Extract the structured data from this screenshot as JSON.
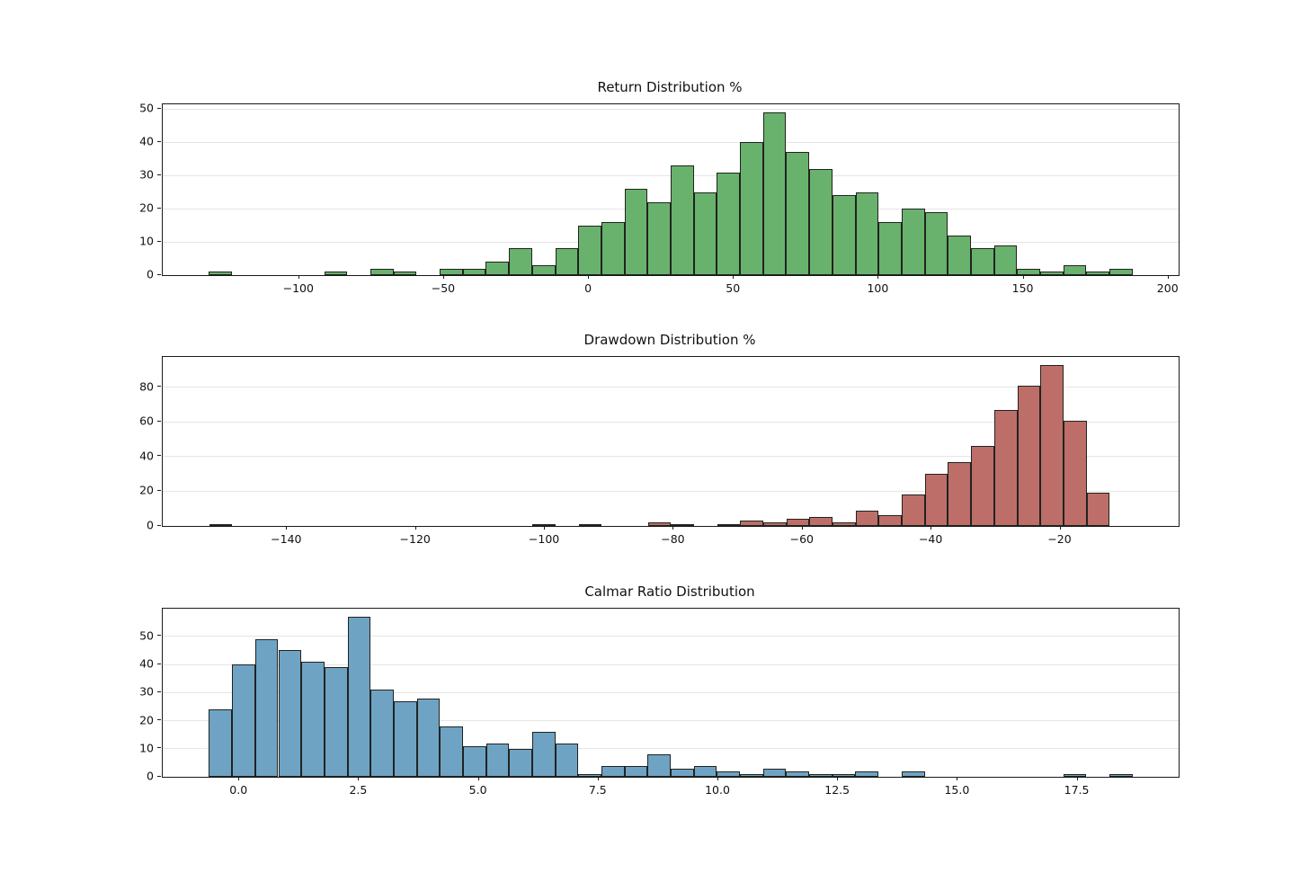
{
  "figure": {
    "background": "#ffffff",
    "text_color": "#111111",
    "grid_color": "#e5e5e5",
    "spine_color": "#1a1a1a",
    "bar_edge_color": "#20231f"
  },
  "chart_data": [
    {
      "type": "bar",
      "subtype": "histogram",
      "title": "Return Distribution %",
      "color": "#69b26d",
      "bin_start": -131.2,
      "bin_width": 7.97,
      "counts": [
        1,
        0,
        0,
        0,
        0,
        1,
        0,
        2,
        1,
        0,
        2,
        2,
        4,
        8,
        3,
        8,
        15,
        16,
        26,
        22,
        33,
        25,
        31,
        40,
        49,
        37,
        32,
        24,
        25,
        16,
        20,
        19,
        12,
        8,
        9,
        2,
        1,
        3,
        1,
        2
      ],
      "xlim": [
        -147.1,
        203.5
      ],
      "ylim": [
        0,
        51.45
      ],
      "grid": "y",
      "xticks": [
        {
          "v": -100,
          "label": "−100"
        },
        {
          "v": -50,
          "label": "−50"
        },
        {
          "v": 0,
          "label": "0"
        },
        {
          "v": 50,
          "label": "50"
        },
        {
          "v": 100,
          "label": "100"
        },
        {
          "v": 150,
          "label": "150"
        },
        {
          "v": 200,
          "label": "200"
        }
      ],
      "yticks": [
        {
          "v": 0,
          "label": "0"
        },
        {
          "v": 10,
          "label": "10"
        },
        {
          "v": 20,
          "label": "20"
        },
        {
          "v": 30,
          "label": "30"
        },
        {
          "v": 40,
          "label": "40"
        },
        {
          "v": 50,
          "label": "50"
        }
      ]
    },
    {
      "type": "bar",
      "subtype": "histogram",
      "title": "Drawdown Distribution %",
      "color": "#bd6e69",
      "bin_start": -152.1,
      "bin_width": 3.583,
      "counts": [
        1,
        0,
        0,
        0,
        0,
        0,
        0,
        0,
        0,
        0,
        0,
        0,
        0,
        0,
        1,
        0,
        1,
        0,
        0,
        2,
        1,
        0,
        1,
        3,
        2,
        4,
        5,
        2,
        9,
        6,
        18,
        30,
        37,
        46,
        67,
        81,
        93,
        61,
        19,
        0
      ],
      "xlim": [
        -159.3,
        -1.66
      ],
      "ylim": [
        0,
        97.65
      ],
      "grid": "y",
      "xticks": [
        {
          "v": -140,
          "label": "−140"
        },
        {
          "v": -120,
          "label": "−120"
        },
        {
          "v": -100,
          "label": "−100"
        },
        {
          "v": -80,
          "label": "−80"
        },
        {
          "v": -60,
          "label": "−60"
        },
        {
          "v": -40,
          "label": "−40"
        },
        {
          "v": -20,
          "label": "−20"
        },
        {
          "v": 0,
          "label": "0"
        }
      ],
      "yticks": [
        {
          "v": 0,
          "label": "0"
        },
        {
          "v": 20,
          "label": "20"
        },
        {
          "v": 40,
          "label": "40"
        },
        {
          "v": 60,
          "label": "60"
        },
        {
          "v": 80,
          "label": "80"
        }
      ]
    },
    {
      "type": "bar",
      "subtype": "histogram",
      "title": "Calmar Ratio Distribution",
      "color": "#6fa3c4",
      "bin_start": -0.634,
      "bin_width": 0.482,
      "counts": [
        24,
        40,
        49,
        45,
        41,
        39,
        57,
        31,
        27,
        28,
        18,
        11,
        12,
        10,
        16,
        12,
        1,
        4,
        4,
        8,
        3,
        4,
        2,
        1,
        3,
        2,
        1,
        1,
        2,
        0,
        2,
        0,
        0,
        0,
        0,
        0,
        0,
        1,
        0,
        1
      ],
      "xlim": [
        -1.6,
        19.61
      ],
      "ylim": [
        0,
        59.85
      ],
      "grid": "y",
      "xticks": [
        {
          "v": 0,
          "label": "0.0"
        },
        {
          "v": 2.5,
          "label": "2.5"
        },
        {
          "v": 5,
          "label": "5.0"
        },
        {
          "v": 7.5,
          "label": "7.5"
        },
        {
          "v": 10,
          "label": "10.0"
        },
        {
          "v": 12.5,
          "label": "12.5"
        },
        {
          "v": 15,
          "label": "15.0"
        },
        {
          "v": 17.5,
          "label": "17.5"
        }
      ],
      "yticks": [
        {
          "v": 0,
          "label": "0"
        },
        {
          "v": 10,
          "label": "10"
        },
        {
          "v": 20,
          "label": "20"
        },
        {
          "v": 30,
          "label": "30"
        },
        {
          "v": 40,
          "label": "40"
        },
        {
          "v": 50,
          "label": "50"
        }
      ]
    }
  ]
}
